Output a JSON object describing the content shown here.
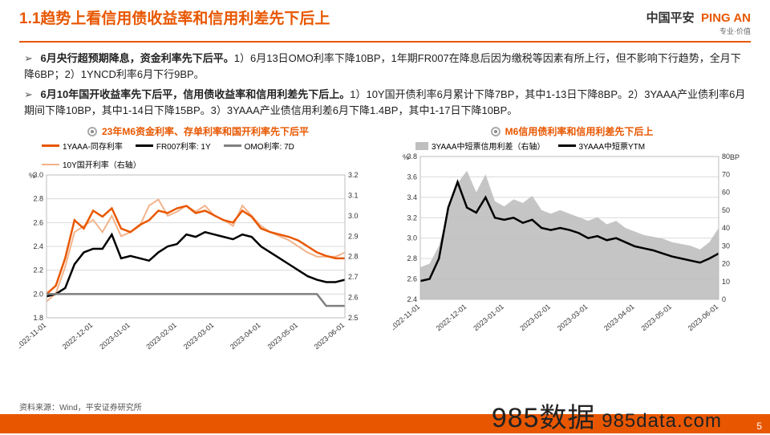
{
  "header": {
    "title": "1.1趋势上看信用债收益率和信用利差先下后上",
    "logo_cn": "中国平安",
    "logo_en": "PING AN",
    "logo_sub": "专业·价值"
  },
  "bullets": [
    {
      "bold": "6月央行超预期降息，资金利率先下后平。",
      "rest": "1）6月13日OMO利率下降10BP，1年期FR007在降息后因为缴税等因素有所上行，但不影响下行趋势，全月下降6BP；2）1YNCD利率6月下行9BP。"
    },
    {
      "bold": "6月10年国开收益率先下后平，信用债收益率和信用利差先下后上。",
      "rest": "1）10Y国开债利率6月累计下降7BP，其中1-13日下降8BP。2）3YAAA产业债利率6月期间下降10BP，其中1-14日下降15BP。3）3YAAA产业债信用利差6月下降1.4BP，其中1-17日下降10BP。"
    }
  ],
  "chart_left": {
    "title": "23年M6资金利率、存单利率和国开利率先下后平",
    "ylabel": "%",
    "series": [
      {
        "name": "1YAAA-同存利率",
        "color": "#e85700",
        "width": 2.5,
        "axis": "left"
      },
      {
        "name": "FR007利率: 1Y",
        "color": "#000000",
        "width": 2.5,
        "axis": "left"
      },
      {
        "name": "OMO利率: 7D",
        "color": "#808080",
        "width": 2.5,
        "axis": "left"
      },
      {
        "name": "10Y国开利率（右轴）",
        "color": "#f2b38a",
        "width": 2,
        "axis": "right"
      }
    ],
    "yleft": {
      "min": 1.8,
      "max": 3.0,
      "step": 0.2
    },
    "yright": {
      "min": 2.5,
      "max": 3.2,
      "step": 0.1
    },
    "xticks": [
      "2022-11-01",
      "2022-12-01",
      "2023-01-01",
      "2023-02-01",
      "2023-03-01",
      "2023-04-01",
      "2023-05-01",
      "2023-06-01"
    ],
    "n_points": 33,
    "data_left": {
      "cunli": [
        2.0,
        2.07,
        2.3,
        2.62,
        2.55,
        2.7,
        2.65,
        2.72,
        2.55,
        2.52,
        2.58,
        2.62,
        2.7,
        2.68,
        2.72,
        2.74,
        2.68,
        2.7,
        2.66,
        2.62,
        2.6,
        2.7,
        2.65,
        2.55,
        2.52,
        2.5,
        2.48,
        2.45,
        2.4,
        2.35,
        2.32,
        2.3,
        2.3
      ],
      "fr007": [
        1.98,
        2.0,
        2.05,
        2.25,
        2.35,
        2.38,
        2.38,
        2.5,
        2.3,
        2.32,
        2.3,
        2.28,
        2.35,
        2.4,
        2.42,
        2.5,
        2.48,
        2.52,
        2.5,
        2.48,
        2.46,
        2.5,
        2.48,
        2.4,
        2.35,
        2.3,
        2.25,
        2.2,
        2.15,
        2.12,
        2.1,
        2.1,
        2.12
      ],
      "omo": [
        2.0,
        2.0,
        2.0,
        2.0,
        2.0,
        2.0,
        2.0,
        2.0,
        2.0,
        2.0,
        2.0,
        2.0,
        2.0,
        2.0,
        2.0,
        2.0,
        2.0,
        2.0,
        2.0,
        2.0,
        2.0,
        2.0,
        2.0,
        2.0,
        2.0,
        2.0,
        2.0,
        2.0,
        2.0,
        2.0,
        1.9,
        1.9,
        1.9
      ]
    },
    "data_right": {
      "gkai": [
        2.58,
        2.62,
        2.75,
        2.92,
        2.95,
        2.98,
        2.92,
        3.0,
        2.9,
        2.92,
        2.95,
        3.05,
        3.08,
        3.0,
        3.02,
        3.05,
        3.02,
        3.05,
        3.0,
        2.98,
        2.95,
        3.05,
        3.0,
        2.95,
        2.92,
        2.9,
        2.88,
        2.85,
        2.82,
        2.8,
        2.8,
        2.8,
        2.82
      ]
    },
    "background_color": "#ffffff",
    "grid_color": "#d9d9d9"
  },
  "chart_right": {
    "title": "M6信用债利率和信用利差先下后上",
    "ylabel_left": "%",
    "ylabel_right": "BP",
    "series": [
      {
        "name": "3YAAA中短票信用利差（右轴）",
        "color": "#bfbfbf",
        "type": "area",
        "axis": "right"
      },
      {
        "name": "3YAAA中短票YTM",
        "color": "#000000",
        "type": "line",
        "width": 2.5,
        "axis": "left"
      }
    ],
    "yleft": {
      "min": 2.4,
      "max": 3.8,
      "step": 0.2
    },
    "yright": {
      "min": 0,
      "max": 80,
      "step": 10
    },
    "xticks": [
      "2022-11-01",
      "2022-12-01",
      "2023-01-01",
      "2023-02-01",
      "2023-03-01",
      "2023-04-01",
      "2023-05-01",
      "2023-06-01"
    ],
    "n_points": 33,
    "data_left": {
      "ytm": [
        2.58,
        2.6,
        2.8,
        3.3,
        3.55,
        3.3,
        3.25,
        3.4,
        3.2,
        3.18,
        3.2,
        3.15,
        3.18,
        3.1,
        3.08,
        3.1,
        3.08,
        3.05,
        3.0,
        3.02,
        2.98,
        3.0,
        2.96,
        2.92,
        2.9,
        2.88,
        2.85,
        2.82,
        2.8,
        2.78,
        2.76,
        2.8,
        2.85
      ]
    },
    "data_right": {
      "spread": [
        18,
        20,
        30,
        50,
        65,
        72,
        60,
        70,
        55,
        52,
        56,
        54,
        58,
        50,
        48,
        50,
        48,
        46,
        44,
        46,
        42,
        44,
        40,
        38,
        36,
        35,
        34,
        32,
        31,
        30,
        28,
        32,
        40
      ]
    },
    "background_color": "#ffffff",
    "grid_color": "#d9d9d9"
  },
  "source": "资料来源：Wind，平安证券研究所",
  "watermark": "985数据",
  "watermark_domain": " 985data.com",
  "page_number": "5"
}
